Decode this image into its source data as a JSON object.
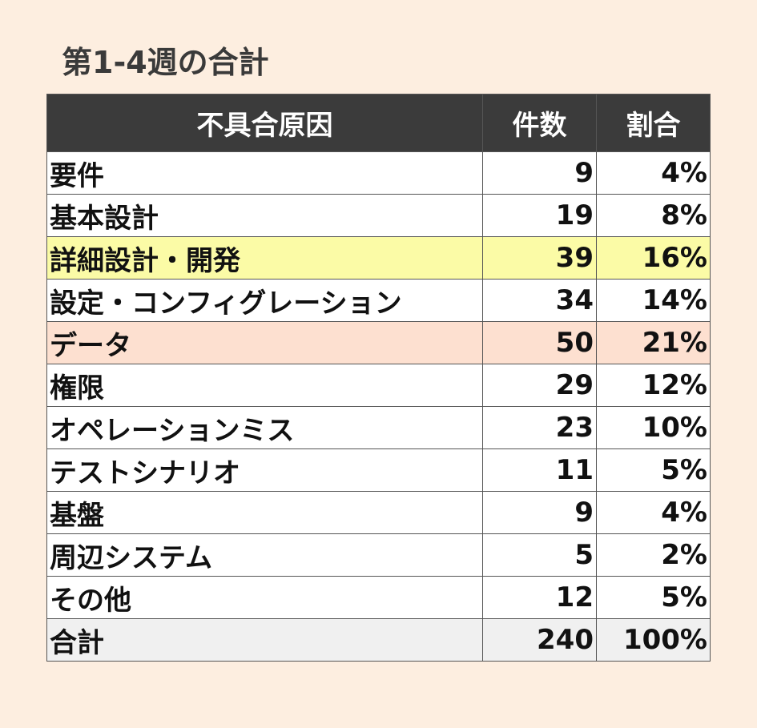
{
  "title": "第1-4週の合計",
  "table": {
    "headers": [
      "不具合原因",
      "件数",
      "割合"
    ],
    "rows": [
      {
        "cause": "要件",
        "count": "9",
        "ratio": "4%",
        "highlight": ""
      },
      {
        "cause": "基本設計",
        "count": "19",
        "ratio": "8%",
        "highlight": ""
      },
      {
        "cause": "詳細設計・開発",
        "count": "39",
        "ratio": "16%",
        "highlight": "yellow"
      },
      {
        "cause": "設定・コンフィグレーション",
        "count": "34",
        "ratio": "14%",
        "highlight": ""
      },
      {
        "cause": "データ",
        "count": "50",
        "ratio": "21%",
        "highlight": "peach"
      },
      {
        "cause": "権限",
        "count": "29",
        "ratio": "12%",
        "highlight": ""
      },
      {
        "cause": "オペレーションミス",
        "count": "23",
        "ratio": "10%",
        "highlight": ""
      },
      {
        "cause": "テストシナリオ",
        "count": "11",
        "ratio": "5%",
        "highlight": ""
      },
      {
        "cause": "基盤",
        "count": "9",
        "ratio": "4%",
        "highlight": ""
      },
      {
        "cause": "周辺システム",
        "count": "5",
        "ratio": "2%",
        "highlight": ""
      },
      {
        "cause": "その他",
        "count": "12",
        "ratio": "5%",
        "highlight": ""
      }
    ],
    "total": {
      "cause": "合計",
      "count": "240",
      "ratio": "100%"
    }
  },
  "colors": {
    "background": "#fdeee0",
    "header_bg": "#3b3b3b",
    "highlight_yellow": "#fbfba6",
    "highlight_peach": "#fde0d0",
    "total_bg": "#f0f0f0"
  }
}
